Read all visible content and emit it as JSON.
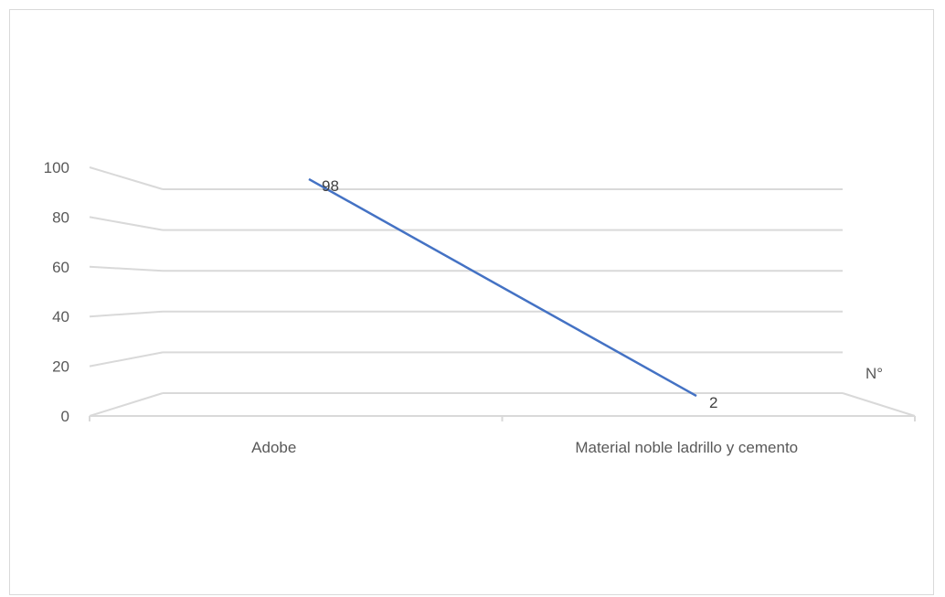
{
  "chart_data": {
    "type": "line",
    "title": "",
    "xlabel": "",
    "ylabel": "",
    "categories": [
      "Adobe",
      "Material noble ladrillo y cemento"
    ],
    "series": [
      {
        "name": "N°",
        "values": [
          98,
          2
        ],
        "data_labels": [
          "98",
          "2"
        ]
      }
    ],
    "ylim": [
      0,
      100
    ],
    "yticks": [
      0,
      20,
      40,
      60,
      80,
      100
    ],
    "ytick_labels": [
      "0",
      "20",
      "40",
      "60",
      "80",
      "100"
    ],
    "grid": true,
    "style": "3d-line",
    "colors": {
      "series": "#4472c4",
      "grid": "#d9d9d9",
      "text": "#595959"
    }
  }
}
